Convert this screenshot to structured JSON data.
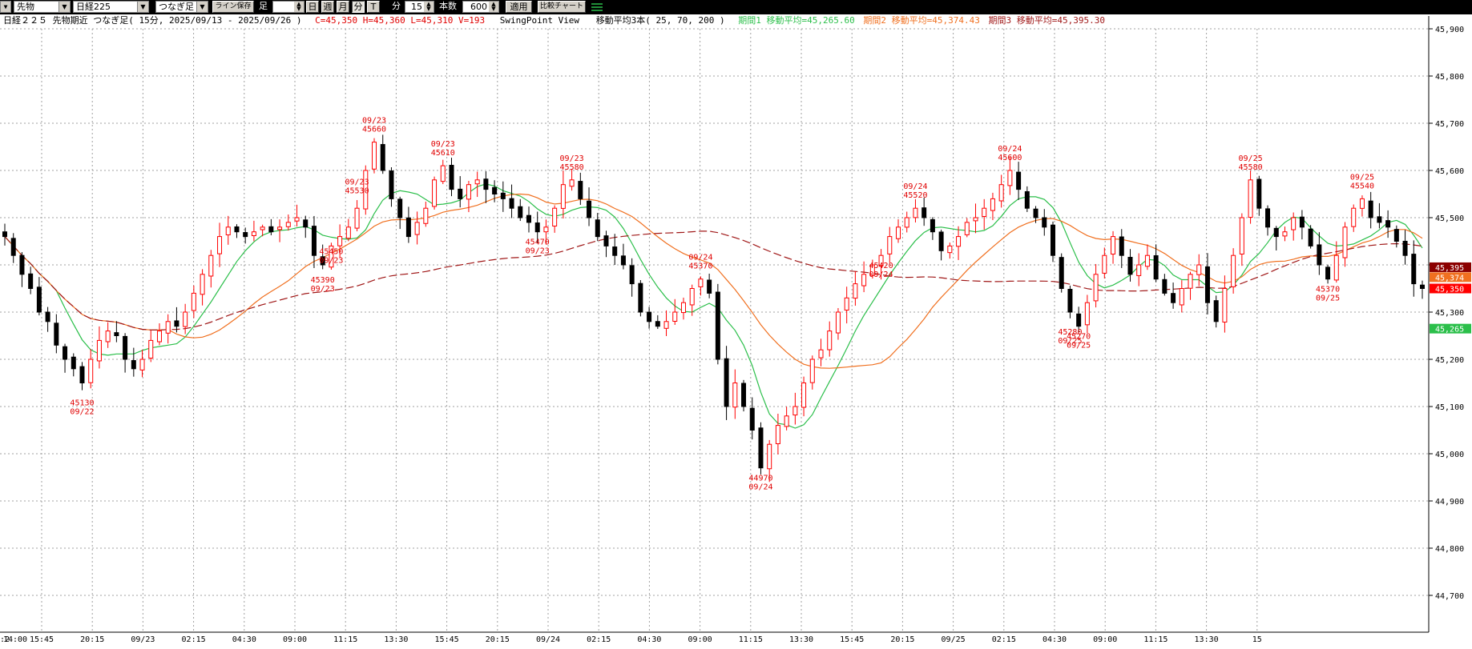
{
  "toolbar": {
    "category": "先物",
    "instrument": "日経225",
    "bar_mode": "つなぎ足",
    "save_line_button": "ライン保存",
    "ashi_label": "足",
    "period_day": "日",
    "period_week": "週",
    "period_month": "月",
    "period_minute": "分",
    "period_tick": "T",
    "minute_label": "分",
    "minute_value": "15",
    "count_label": "本数",
    "count_value": "600",
    "apply_button": "適用",
    "compare_button": "比較チャート"
  },
  "info": {
    "title": "日経２２５ 先物期近 つなぎ足( 15分, 2025/09/13 - 2025/09/26 )",
    "ohlc": "C=45,350 H=45,360 L=45,310 V=193",
    "swing": "SwingPoint View",
    "ma_label": "移動平均3本( 25, 70, 200 )",
    "ma1": "期間1 移動平均=45,265.60",
    "ma2": "期間2 移動平均=45,374.43",
    "ma3": "期間3 移動平均=45,395.30"
  },
  "colors": {
    "up": "#ff0000",
    "down": "#000000",
    "ma25": "#2bbf4a",
    "ma70": "#f07020",
    "ma200": "#a01818",
    "grid": "#a0a0a0",
    "annotation": "#e00000"
  },
  "chart_data": {
    "type": "candlestick",
    "interval": "15分",
    "ylim": [
      44650,
      45910
    ],
    "y_ticks": [
      "45,900",
      "45,800",
      "45,700",
      "45,600",
      "45,500",
      "45,400",
      "45,300",
      "45,200",
      "45,100",
      "45,000",
      "44,900",
      "44,800",
      "44,700"
    ],
    "x_labels": [
      "14:00",
      "15:45",
      "20:15",
      "09/23",
      "02:15",
      "04:30",
      "09:00",
      "11:15",
      "13:30",
      "15:45",
      "20:15",
      "09/24",
      "02:15",
      "04:30",
      "09:00",
      "11:15",
      "13:30",
      "15:45",
      "20:15",
      "09/25",
      "02:15",
      "04:30",
      "09:00",
      "11:15",
      "13:30",
      "15"
    ],
    "x_label_left_stub": ":2",
    "price_tags": [
      {
        "text": "45,395",
        "value": 45395,
        "color": "#8b0000"
      },
      {
        "text": "45,374",
        "value": 45374,
        "color": "#f07020"
      },
      {
        "text": "45,350",
        "value": 45350,
        "color": "#ff0000"
      },
      {
        "text": "45,265",
        "value": 45265,
        "color": "#2bbf4a"
      }
    ],
    "swing_points": [
      {
        "date": "09/22",
        "price": "45130",
        "pos": "below"
      },
      {
        "date": "09/23",
        "price": "45530",
        "pos": "above"
      },
      {
        "date": "09/23",
        "price": "45390",
        "pos": "below"
      },
      {
        "date": "09/23",
        "price": "45660",
        "pos": "above"
      },
      {
        "date": "09/23",
        "price": "45450",
        "pos": "below"
      },
      {
        "date": "09/23",
        "price": "45610",
        "pos": "above"
      },
      {
        "date": "09/23",
        "price": "45580",
        "pos": "above"
      },
      {
        "date": "09/23",
        "price": "45470",
        "pos": "below"
      },
      {
        "date": "09/24",
        "price": "45370",
        "pos": "above"
      },
      {
        "date": "09/24",
        "price": "44970",
        "pos": "below"
      },
      {
        "date": "09/24",
        "price": "45520",
        "pos": "above"
      },
      {
        "date": "09/24",
        "price": "45420",
        "pos": "below"
      },
      {
        "date": "09/24",
        "price": "45600",
        "pos": "above"
      },
      {
        "date": "09/25",
        "price": "45270",
        "pos": "below"
      },
      {
        "date": "09/25",
        "price": "45580",
        "pos": "above"
      },
      {
        "date": "09/25",
        "price": "45280",
        "pos": "below"
      },
      {
        "date": "09/25",
        "price": "45370",
        "pos": "below"
      },
      {
        "date": "09/25",
        "price": "45540",
        "pos": "above"
      }
    ],
    "price_path": [
      45460,
      45420,
      45380,
      45350,
      45300,
      45280,
      45230,
      45200,
      45180,
      45150,
      45200,
      45240,
      45260,
      45250,
      45200,
      45180,
      45200,
      45240,
      45260,
      45280,
      45270,
      45300,
      45340,
      45380,
      45420,
      45460,
      45480,
      45470,
      45460,
      45470,
      45480,
      45470,
      45480,
      45490,
      45500,
      45480,
      45420,
      45400,
      45440,
      45460,
      45480,
      45520,
      45600,
      45660,
      45600,
      45540,
      45500,
      45460,
      45490,
      45520,
      45580,
      45610,
      45560,
      45540,
      45570,
      45580,
      45560,
      45550,
      45540,
      45520,
      45500,
      45490,
      45470,
      45480,
      45520,
      45570,
      45580,
      45540,
      45500,
      45460,
      45440,
      45420,
      45400,
      45360,
      45300,
      45280,
      45270,
      45280,
      45300,
      45320,
      45350,
      45370,
      45340,
      45200,
      45100,
      45150,
      45100,
      45050,
      44970,
      45020,
      45060,
      45080,
      45100,
      45150,
      45200,
      45220,
      45260,
      45300,
      45330,
      45360,
      45380,
      45400,
      45420,
      45460,
      45480,
      45500,
      45520,
      45500,
      45470,
      45430,
      45440,
      45460,
      45490,
      45500,
      45520,
      45540,
      45570,
      45600,
      45560,
      45520,
      45500,
      45480,
      45420,
      45350,
      45300,
      45270,
      45320,
      45380,
      45420,
      45460,
      45420,
      45380,
      45400,
      45420,
      45370,
      45340,
      45320,
      45350,
      45380,
      45400,
      45320,
      45280,
      45350,
      45420,
      45500,
      45580,
      45520,
      45480,
      45460,
      45470,
      45500,
      45480,
      45440,
      45400,
      45370,
      45420,
      45480,
      45520,
      45540,
      45500,
      45490,
      45480,
      45450,
      45420,
      45360,
      45350
    ],
    "ma25": "green line (period 25)",
    "ma70": "orange line (period 70)",
    "ma200": "dashed dark red line (period 200)"
  }
}
